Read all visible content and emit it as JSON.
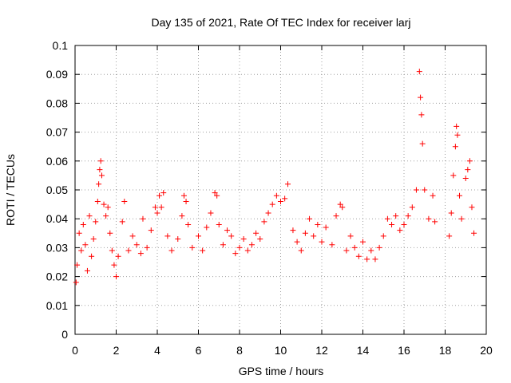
{
  "chart_data": {
    "type": "scatter",
    "title": "Day 135 of 2021, Rate Of TEC Index for receiver larj",
    "xlabel": "GPS time / hours",
    "ylabel": "ROTI / TECUs",
    "xlim": [
      0,
      20
    ],
    "ylim": [
      0,
      0.1
    ],
    "grid": true,
    "marker": "+",
    "color": "#ff0000",
    "x_ticks": [
      "0",
      "2",
      "4",
      "6",
      "8",
      "10",
      "12",
      "14",
      "16",
      "18",
      "20"
    ],
    "y_ticks": [
      "0",
      "0.01",
      "0.02",
      "0.03",
      "0.04",
      "0.05",
      "0.06",
      "0.07",
      "0.08",
      "0.09",
      "0.1"
    ],
    "data_gaps_hours": [
      [
        17.6,
        18.2
      ]
    ],
    "series": [
      {
        "name": "ROTI",
        "points": [
          [
            0.05,
            0.018
          ],
          [
            0.1,
            0.024
          ],
          [
            0.2,
            0.035
          ],
          [
            0.3,
            0.029
          ],
          [
            0.4,
            0.038
          ],
          [
            0.5,
            0.031
          ],
          [
            0.6,
            0.022
          ],
          [
            0.7,
            0.041
          ],
          [
            0.8,
            0.027
          ],
          [
            0.9,
            0.033
          ],
          [
            1.0,
            0.039
          ],
          [
            1.1,
            0.046
          ],
          [
            1.15,
            0.052
          ],
          [
            1.2,
            0.057
          ],
          [
            1.25,
            0.06
          ],
          [
            1.3,
            0.055
          ],
          [
            1.4,
            0.045
          ],
          [
            1.5,
            0.041
          ],
          [
            1.6,
            0.044
          ],
          [
            1.7,
            0.035
          ],
          [
            1.8,
            0.029
          ],
          [
            1.9,
            0.024
          ],
          [
            2.0,
            0.02
          ],
          [
            2.1,
            0.027
          ],
          [
            2.3,
            0.039
          ],
          [
            2.4,
            0.046
          ],
          [
            2.6,
            0.029
          ],
          [
            2.8,
            0.034
          ],
          [
            3.0,
            0.031
          ],
          [
            3.2,
            0.028
          ],
          [
            3.3,
            0.04
          ],
          [
            3.5,
            0.03
          ],
          [
            3.7,
            0.036
          ],
          [
            3.9,
            0.044
          ],
          [
            4.0,
            0.042
          ],
          [
            4.1,
            0.048
          ],
          [
            4.2,
            0.044
          ],
          [
            4.3,
            0.049
          ],
          [
            4.5,
            0.034
          ],
          [
            4.7,
            0.029
          ],
          [
            5.0,
            0.033
          ],
          [
            5.2,
            0.041
          ],
          [
            5.3,
            0.048
          ],
          [
            5.4,
            0.046
          ],
          [
            5.5,
            0.038
          ],
          [
            5.7,
            0.03
          ],
          [
            6.0,
            0.034
          ],
          [
            6.2,
            0.029
          ],
          [
            6.4,
            0.037
          ],
          [
            6.6,
            0.042
          ],
          [
            6.8,
            0.049
          ],
          [
            6.9,
            0.048
          ],
          [
            7.0,
            0.038
          ],
          [
            7.2,
            0.031
          ],
          [
            7.4,
            0.036
          ],
          [
            7.6,
            0.034
          ],
          [
            7.8,
            0.028
          ],
          [
            8.0,
            0.03
          ],
          [
            8.2,
            0.033
          ],
          [
            8.4,
            0.029
          ],
          [
            8.6,
            0.031
          ],
          [
            8.8,
            0.035
          ],
          [
            9.0,
            0.033
          ],
          [
            9.2,
            0.039
          ],
          [
            9.4,
            0.042
          ],
          [
            9.6,
            0.045
          ],
          [
            9.8,
            0.048
          ],
          [
            10.0,
            0.046
          ],
          [
            10.2,
            0.047
          ],
          [
            10.35,
            0.052
          ],
          [
            10.6,
            0.036
          ],
          [
            10.8,
            0.032
          ],
          [
            11.0,
            0.029
          ],
          [
            11.2,
            0.035
          ],
          [
            11.4,
            0.04
          ],
          [
            11.6,
            0.034
          ],
          [
            11.8,
            0.038
          ],
          [
            12.0,
            0.032
          ],
          [
            12.2,
            0.037
          ],
          [
            12.5,
            0.031
          ],
          [
            12.7,
            0.041
          ],
          [
            12.9,
            0.045
          ],
          [
            13.0,
            0.044
          ],
          [
            13.2,
            0.029
          ],
          [
            13.4,
            0.034
          ],
          [
            13.6,
            0.03
          ],
          [
            13.8,
            0.027
          ],
          [
            14.0,
            0.032
          ],
          [
            14.2,
            0.026
          ],
          [
            14.4,
            0.029
          ],
          [
            14.6,
            0.026
          ],
          [
            14.8,
            0.03
          ],
          [
            15.0,
            0.034
          ],
          [
            15.2,
            0.04
          ],
          [
            15.4,
            0.038
          ],
          [
            15.6,
            0.041
          ],
          [
            15.8,
            0.036
          ],
          [
            16.0,
            0.038
          ],
          [
            16.2,
            0.041
          ],
          [
            16.4,
            0.044
          ],
          [
            16.6,
            0.05
          ],
          [
            16.75,
            0.091
          ],
          [
            16.8,
            0.082
          ],
          [
            16.85,
            0.076
          ],
          [
            16.9,
            0.066
          ],
          [
            17.0,
            0.05
          ],
          [
            17.2,
            0.04
          ],
          [
            17.4,
            0.048
          ],
          [
            17.5,
            0.039
          ],
          [
            18.2,
            0.034
          ],
          [
            18.3,
            0.042
          ],
          [
            18.4,
            0.055
          ],
          [
            18.5,
            0.065
          ],
          [
            18.55,
            0.072
          ],
          [
            18.6,
            0.069
          ],
          [
            18.7,
            0.048
          ],
          [
            18.8,
            0.04
          ],
          [
            19.0,
            0.054
          ],
          [
            19.1,
            0.057
          ],
          [
            19.2,
            0.06
          ],
          [
            19.3,
            0.044
          ],
          [
            19.4,
            0.035
          ]
        ]
      }
    ]
  }
}
